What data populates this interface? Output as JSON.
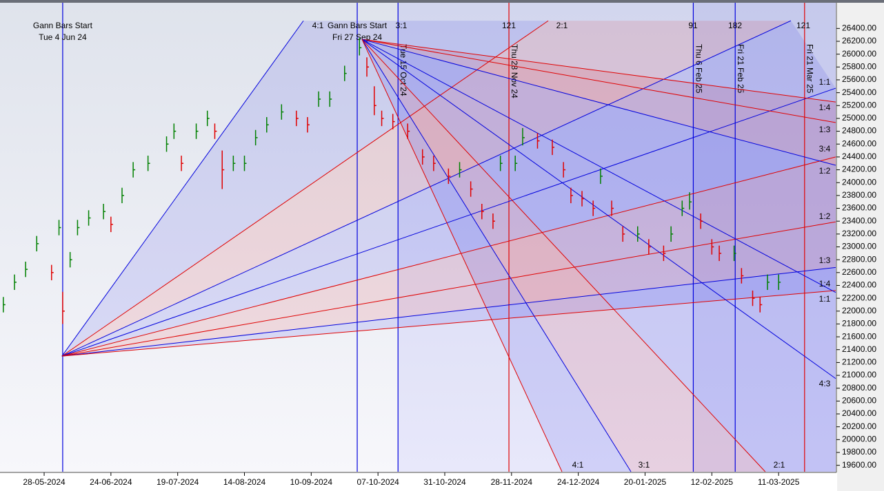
{
  "chart_data": {
    "type": "ohlc",
    "up_color": "#008000",
    "down_color": "#e00000",
    "xlim": [
      -11.9,
      213.4
    ],
    "xticks": [
      {
        "value": 0,
        "label": "28-05-2024"
      },
      {
        "value": 18,
        "label": "24-06-2024"
      },
      {
        "value": 36,
        "label": "19-07-2024"
      },
      {
        "value": 54,
        "label": "14-08-2024"
      },
      {
        "value": 72,
        "label": "10-09-2024"
      },
      {
        "value": 90,
        "label": "07-10-2024"
      },
      {
        "value": 108,
        "label": "31-10-2024"
      },
      {
        "value": 126,
        "label": "28-11-2024"
      },
      {
        "value": 144,
        "label": "24-12-2024"
      },
      {
        "value": 162,
        "label": "20-01-2025"
      },
      {
        "value": 180,
        "label": "12-02-2025"
      },
      {
        "value": 198,
        "label": "11-03-2025"
      }
    ],
    "ylim": [
      19500,
      26800
    ],
    "yticks": [
      {
        "value": 26400,
        "label": "26400.00"
      },
      {
        "value": 26200,
        "label": "26200.00"
      },
      {
        "value": 26000,
        "label": "26000.00"
      },
      {
        "value": 25800,
        "label": "25800.00"
      },
      {
        "value": 25600,
        "label": "25600.00"
      },
      {
        "value": 25400,
        "label": "25400.00"
      },
      {
        "value": 25200,
        "label": "25200.00"
      },
      {
        "value": 25000,
        "label": "25000.00"
      },
      {
        "value": 24800,
        "label": "24800.00"
      },
      {
        "value": 24600,
        "label": "24600.00"
      },
      {
        "value": 24400,
        "label": "24400.00"
      },
      {
        "value": 24200,
        "label": "24200.00"
      },
      {
        "value": 24000,
        "label": "24000.00"
      },
      {
        "value": 23800,
        "label": "23800.00"
      },
      {
        "value": 23600,
        "label": "23600.00"
      },
      {
        "value": 23400,
        "label": "23400.00"
      },
      {
        "value": 23200,
        "label": "23200.00"
      },
      {
        "value": 23000,
        "label": "23000.00"
      },
      {
        "value": 22800,
        "label": "22800.00"
      },
      {
        "value": 22600,
        "label": "22600.00"
      },
      {
        "value": 22400,
        "label": "22400.00"
      },
      {
        "value": 22200,
        "label": "22200.00"
      },
      {
        "value": 22000,
        "label": "22000.00"
      },
      {
        "value": 21800,
        "label": "21800.00"
      },
      {
        "value": 21600,
        "label": "21600.00"
      },
      {
        "value": 21400,
        "label": "21400.00"
      },
      {
        "value": 21200,
        "label": "21200.00"
      },
      {
        "value": 21000,
        "label": "21000.00"
      },
      {
        "value": 20800,
        "label": "20800.00"
      },
      {
        "value": 20600,
        "label": "20600.00"
      },
      {
        "value": 20400,
        "label": "20400.00"
      },
      {
        "value": 20200,
        "label": "20200.00"
      },
      {
        "value": 20000,
        "label": "20000.00"
      },
      {
        "value": 19800,
        "label": "19800.00"
      },
      {
        "value": 19600,
        "label": "19600.00"
      }
    ],
    "x": [
      -11,
      -8,
      -5,
      -2,
      2,
      4,
      5,
      7,
      9,
      12,
      16,
      18,
      21,
      24,
      28,
      33,
      35,
      37,
      41,
      44,
      46,
      48,
      51,
      54,
      57,
      60,
      64,
      68,
      71,
      74,
      77,
      81,
      85,
      87,
      89,
      91,
      94,
      98,
      102,
      105,
      109,
      112,
      115,
      118,
      121,
      123,
      127,
      129,
      133,
      137,
      140,
      142,
      145,
      148,
      150,
      153,
      156,
      160,
      163,
      167,
      169,
      172,
      174,
      177,
      180,
      182,
      186,
      188,
      191,
      193,
      195,
      198
    ],
    "high": [
      22220,
      22570,
      22770,
      23170,
      22720,
      23420,
      22300,
      22920,
      23420,
      23570,
      23670,
      23470,
      23920,
      24320,
      24420,
      24720,
      24920,
      24420,
      24920,
      25120,
      24920,
      24500,
      24420,
      24420,
      24820,
      25020,
      25220,
      25120,
      25020,
      25420,
      25420,
      25820,
      26250,
      25950,
      25500,
      25120,
      25070,
      24920,
      24520,
      24420,
      24220,
      24320,
      24020,
      23670,
      23520,
      24420,
      24420,
      24850,
      24770,
      24670,
      24320,
      23920,
      23870,
      23720,
      24220,
      23720,
      23320,
      23320,
      23120,
      23020,
      23320,
      23720,
      23850,
      23520,
      23120,
      23020,
      23020,
      22670,
      22320,
      22220,
      22570,
      22570
    ],
    "low": [
      21980,
      22330,
      22530,
      22930,
      22480,
      23180,
      21800,
      22680,
      23180,
      23330,
      23430,
      23230,
      23680,
      24080,
      24180,
      24480,
      24680,
      24180,
      24680,
      24880,
      24680,
      23900,
      24180,
      24180,
      24580,
      24780,
      24980,
      24880,
      24780,
      25180,
      25180,
      25580,
      25980,
      25650,
      25050,
      24880,
      24830,
      24680,
      24280,
      24180,
      23980,
      24080,
      23780,
      23430,
      23280,
      24180,
      24180,
      24580,
      24530,
      24430,
      24080,
      23680,
      23630,
      23480,
      23980,
      23480,
      23080,
      23080,
      22880,
      22780,
      23080,
      23480,
      23580,
      23280,
      22880,
      22780,
      22780,
      22430,
      22080,
      21980,
      22330,
      22330
    ],
    "close": [
      22100,
      22450,
      22650,
      23050,
      22600,
      23300,
      22000,
      22800,
      23300,
      23450,
      23550,
      23350,
      23800,
      24200,
      24300,
      24600,
      24800,
      24300,
      24800,
      25000,
      24800,
      24200,
      24300,
      24300,
      24700,
      24900,
      25100,
      25000,
      24900,
      25300,
      25300,
      25700,
      26100,
      25800,
      25200,
      25000,
      24950,
      24800,
      24400,
      24300,
      24100,
      24200,
      23900,
      23550,
      23400,
      24300,
      24300,
      24700,
      24650,
      24550,
      24200,
      23800,
      23750,
      23600,
      24100,
      23600,
      23200,
      23200,
      23000,
      22900,
      23200,
      23600,
      23700,
      23400,
      23000,
      22900,
      22900,
      22550,
      22200,
      22100,
      22450,
      22450
    ],
    "vlines": [
      {
        "x": 5,
        "color": "#0000dd",
        "title": "Gann Bars Start",
        "label": "Tue 4 Jun 24"
      },
      {
        "x": 84.4,
        "color": "#0000dd",
        "title": "Gann Bars Start",
        "label": "Fri 27 Sep 24"
      },
      {
        "x": 95.4,
        "color": "#0000dd",
        "label": "Tue 15 Oct 24"
      },
      {
        "x": 125.3,
        "color": "#e00000",
        "label": "Thu 28 Nov 24"
      },
      {
        "x": 175,
        "color": "#0000dd",
        "label": "Thu 6 Feb 25"
      },
      {
        "x": 186.3,
        "color": "#0000dd",
        "label": "Fri 21 Feb 25"
      },
      {
        "x": 205,
        "color": "#e00000",
        "label": "Fri 21 Mar 25"
      }
    ],
    "fans": [
      {
        "origin": [
          4.8,
          21300
        ],
        "lines": [
          {
            "to": [
              69.9,
              26520
            ],
            "color": "#0000dd"
          },
          {
            "to": [
              135.9,
              26520
            ],
            "color": "#e00000"
          },
          {
            "to": [
              201.3,
              26520
            ],
            "color": "#0000dd"
          },
          {
            "to": [
              213.4,
              25470
            ],
            "color": "#0000dd"
          },
          {
            "to": [
              213.4,
              24400
            ],
            "color": "#e00000"
          },
          {
            "to": [
              213.4,
              23390
            ],
            "color": "#e00000"
          },
          {
            "to": [
              213.4,
              22680
            ],
            "color": "#0000dd"
          },
          {
            "to": [
              213.4,
              22320
            ],
            "color": "#e00000"
          }
        ]
      },
      {
        "origin": [
          85.7,
          26230
        ],
        "lines": [
          {
            "to": [
              213.4,
              25255
            ],
            "color": "#e00000"
          },
          {
            "to": [
              213.4,
              24935
            ],
            "color": "#e00000"
          },
          {
            "to": [
              213.4,
              24270
            ],
            "color": "#0000dd"
          },
          {
            "to": [
              213.4,
              22290
            ],
            "color": "#0000dd"
          },
          {
            "to": [
              213.4,
              20950
            ],
            "color": "#0000dd"
          },
          {
            "to": [
              194.4,
              19500
            ],
            "color": "#e00000"
          },
          {
            "to": [
              158.2,
              19500
            ],
            "color": "#0000dd"
          },
          {
            "to": [
              139.6,
              19500
            ],
            "color": "#e00000"
          }
        ]
      }
    ],
    "ratio_labels": [
      "4:1",
      "3:1",
      "2:1",
      "1:1",
      "1:4",
      "1:3",
      "3:4",
      "1:2",
      "1:2",
      "1:3",
      "1:4",
      "1:1",
      "4:3",
      "4:1",
      "3:1",
      "2:1"
    ],
    "cycle_labels": [
      "121",
      "91",
      "182",
      "121"
    ]
  }
}
